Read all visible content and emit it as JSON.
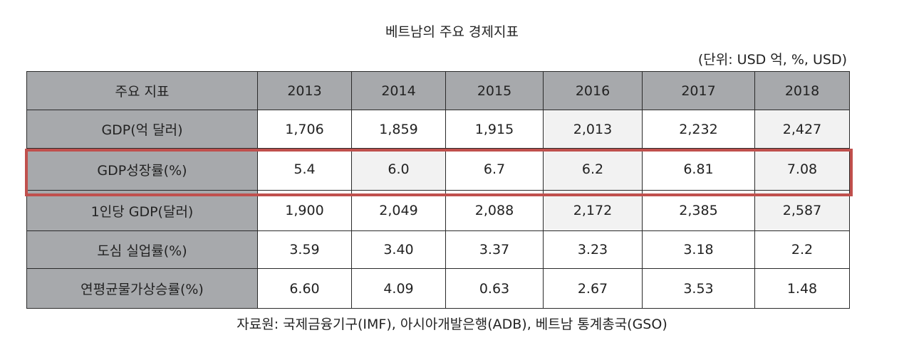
{
  "title": "베트남의 주요 경제지표",
  "unit": "(단위: USD 억, %, USD)",
  "table": {
    "header_label": "주요 지표",
    "years": [
      "2013",
      "2014",
      "2015",
      "2016",
      "2017",
      "2018"
    ],
    "rows": [
      {
        "label": "GDP(억 달러)",
        "values": [
          "1,706",
          "1,859",
          "1,915",
          "2,013",
          "2,232",
          "2,427"
        ]
      },
      {
        "label": "GDP성장률(%)",
        "values": [
          "5.4",
          "6.0",
          "6.7",
          "6.2",
          "6.81",
          "7.08"
        ],
        "highlighted": true
      },
      {
        "label": "1인당 GDP(달러)",
        "values": [
          "1,900",
          "2,049",
          "2,088",
          "2,172",
          "2,385",
          "2,587"
        ]
      },
      {
        "label": "도심 실업률(%)",
        "values": [
          "3.59",
          "3.40",
          "3.37",
          "3.23",
          "3.18",
          "2.2"
        ]
      },
      {
        "label": "연평균물가상승률(%)",
        "values": [
          "6.60",
          "4.09",
          "0.63",
          "2.67",
          "3.53",
          "1.48"
        ]
      }
    ]
  },
  "source": "자료원: 국제금융기구(IMF), 아시아개발은행(ADB), 베트남 통계총국(GSO)",
  "colors": {
    "header_fill": "#a7a9ac",
    "cell_white": "#ffffff",
    "cell_gray": "#f2f2f2",
    "highlight_border": "#c0504d"
  }
}
